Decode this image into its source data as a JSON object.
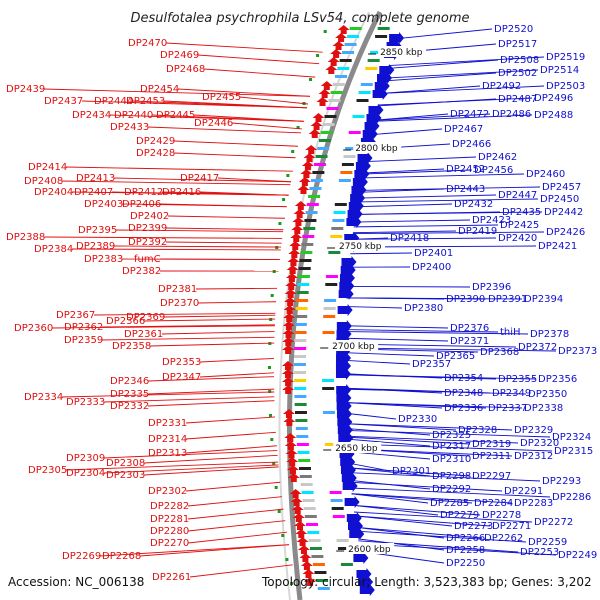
{
  "map": {
    "title": "Desulfotalea psychrophila LSv54, complete genome",
    "accession": "Accession: NC_006138",
    "summary": "Topology: circular; Length: 3,523,383 bp; Genes: 3,202",
    "kbp_ticks": [
      "2850 kbp",
      "2800 kbp",
      "2750 kbp",
      "2700 kbp",
      "2650 kbp",
      "2600 kbp"
    ],
    "colors": {
      "minus_strand": "#e01010",
      "plus_strand": "#1010d0",
      "backbone": "#888888",
      "tick": "#1a9a1a"
    },
    "left_labels": [
      "DP2470",
      "DP2469",
      "DP2468",
      "DP2439",
      "DP2454",
      "DP2437",
      "DP2444",
      "DP2453",
      "DP2455",
      "DP2434",
      "DP2440",
      "DP2445",
      "DP2446",
      "DP2433",
      "DP2429",
      "DP2428",
      "DP2414",
      "DP2413",
      "DP2417",
      "DP2408",
      "DP2404",
      "DP2407",
      "DP2412",
      "DP2416",
      "DP2403",
      "DP2406",
      "DP2402",
      "DP2399",
      "DP2388",
      "DP2395",
      "DP2392",
      "DP2384",
      "DP2389",
      "DP2383",
      "fumC",
      "DP2382",
      "DP2381",
      "DP2370",
      "DP2367",
      "DP2369",
      "DP2366",
      "DP2360",
      "DP2362",
      "DP2361",
      "DP2359",
      "DP2358",
      "DP2353",
      "DP2347",
      "DP2346",
      "DP2335",
      "DP2334",
      "DP2333",
      "DP2332",
      "DP2331",
      "DP2314",
      "DP2313",
      "DP2309",
      "DP2308",
      "DP2305",
      "DP2304",
      "DP2303",
      "DP2302",
      "DP2282",
      "DP2281",
      "DP2280",
      "DP2270",
      "DP2269",
      "DP2268",
      "DP2261"
    ],
    "right_labels": [
      "DP2520",
      "DP2517",
      "DP2519",
      "DP2508",
      "DP2514",
      "DP2502",
      "DP2503",
      "DP2492",
      "DP2496",
      "DP2487",
      "DP2472",
      "DP2486",
      "DP2488",
      "DP2467",
      "DP2466",
      "DP2462",
      "DP2456",
      "DP2460",
      "DP2452",
      "DP2457",
      "DP2443",
      "DP2447",
      "DP2450",
      "DP2432",
      "DP2435",
      "DP2442",
      "DP2423",
      "DP2425",
      "DP2419",
      "DP2426",
      "DP2418",
      "DP2420",
      "DP2421",
      "DP2401",
      "DP2400",
      "DP2396",
      "DP2390",
      "DP2391",
      "DP2394",
      "DP2380",
      "DP2376",
      "thiH",
      "DP2378",
      "DP2371",
      "DP2372",
      "DP2373",
      "DP2365",
      "DP2368",
      "DP2357",
      "DP2354",
      "DP2355",
      "DP2356",
      "DP2348",
      "DP2349",
      "DP2350",
      "DP2336",
      "DP2337",
      "DP2338",
      "DP2330",
      "DP2328",
      "DP2329",
      "DP2325",
      "DP2324",
      "DP2317",
      "DP2319",
      "DP2320",
      "DP2310",
      "DP2311",
      "DP2312",
      "DP2315",
      "DP2301",
      "DP2298",
      "DP2297",
      "DP2293",
      "DP2292",
      "DP2291",
      "DP2286",
      "DP2285",
      "DP2284",
      "DP2283",
      "DP2279",
      "DP2278",
      "DP2273",
      "DP2271",
      "DP2272",
      "DP2266",
      "DP2262",
      "DP2259",
      "DP2258",
      "DP2253",
      "DP2249",
      "DP2250"
    ]
  }
}
